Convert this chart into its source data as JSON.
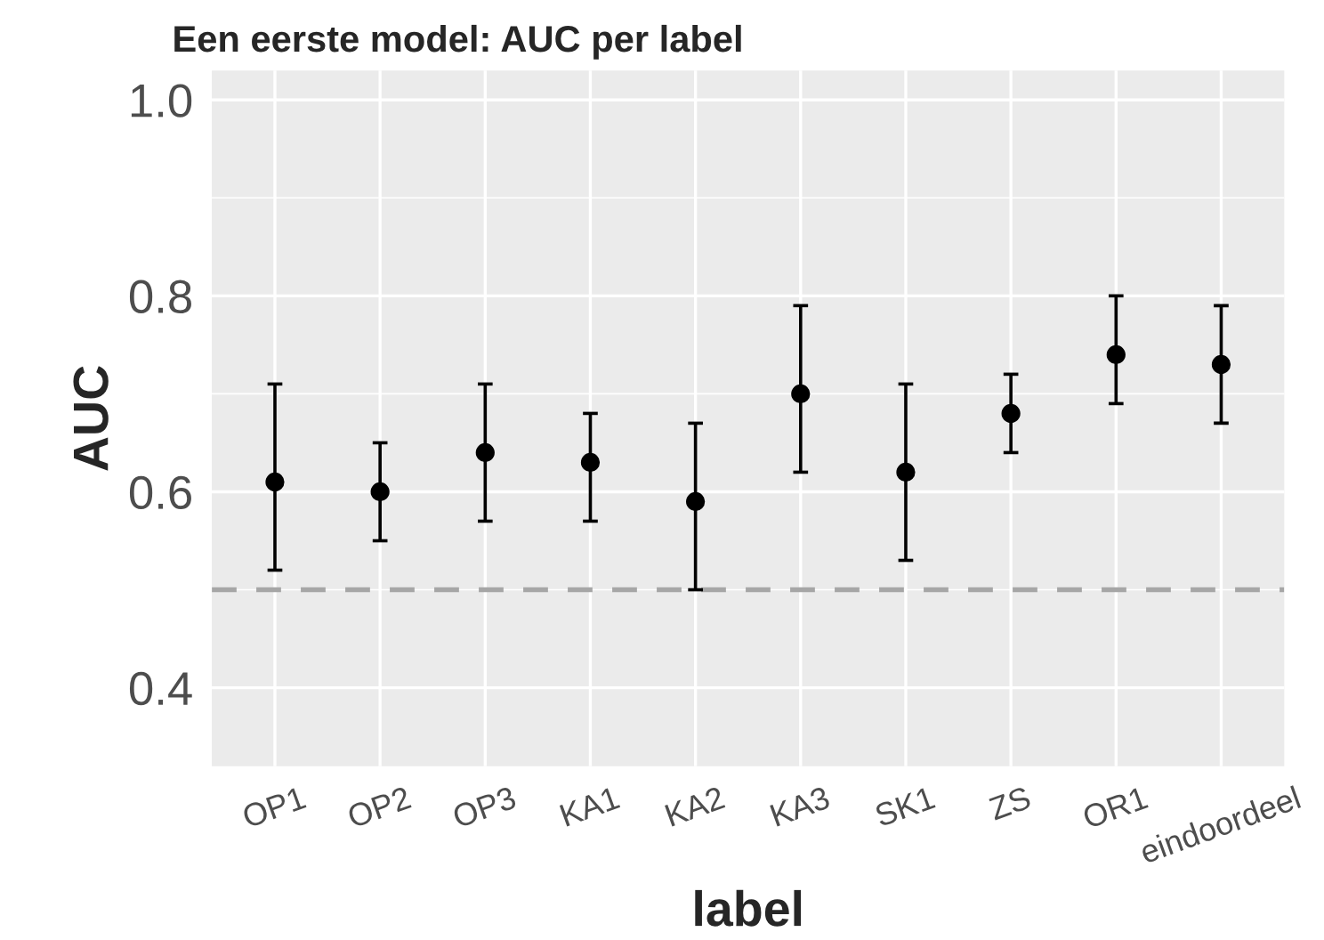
{
  "chart_data": {
    "type": "scatter",
    "title": "Een eerste model: AUC per label",
    "xlabel": "label",
    "ylabel": "AUC",
    "categories": [
      "OP1",
      "OP2",
      "OP3",
      "KA1",
      "KA2",
      "KA3",
      "SK1",
      "ZS",
      "OR1",
      "eindoordeel"
    ],
    "series": [
      {
        "color": "#000000",
        "values": [
          0.61,
          0.6,
          0.64,
          0.63,
          0.59,
          0.7,
          0.62,
          0.68,
          0.74,
          0.73
        ],
        "errors": [
          [
            0.52,
            0.71
          ],
          [
            0.55,
            0.65
          ],
          [
            0.57,
            0.71
          ],
          [
            0.57,
            0.68
          ],
          [
            0.5,
            0.67
          ],
          [
            0.62,
            0.79
          ],
          [
            0.53,
            0.71
          ],
          [
            0.64,
            0.72
          ],
          [
            0.69,
            0.8
          ],
          [
            0.67,
            0.79
          ]
        ]
      }
    ],
    "ylim": [
      0.32,
      1.03
    ],
    "yticks": [
      0.4,
      0.6,
      0.8,
      {
        "value": 1,
        "label": "1.0"
      }
    ],
    "grid": true,
    "marker": "circle",
    "ref_lines": [
      {
        "axis": "y",
        "value": 0.5,
        "color": "#a6a6a6",
        "line_style": "dashed"
      }
    ]
  }
}
